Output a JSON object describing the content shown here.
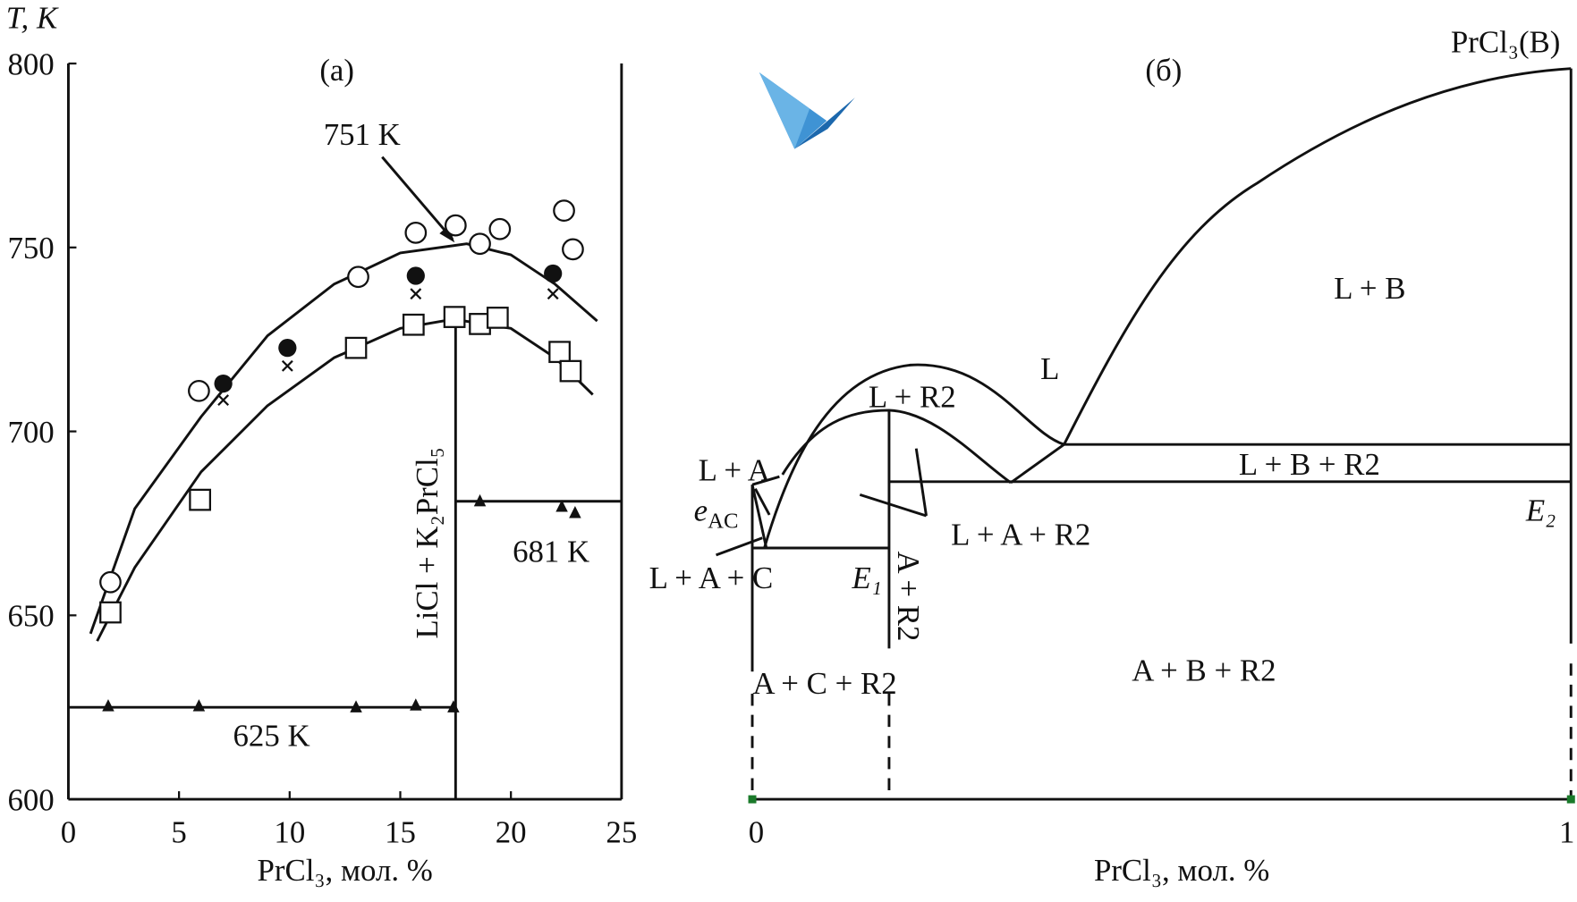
{
  "chart_data": [
    {
      "type": "scatter",
      "title": "(a)",
      "xlabel": "PrCl₃, мол. %",
      "ylabel": "T, K",
      "xlim": [
        0,
        25
      ],
      "ylim": [
        600,
        800
      ],
      "xticks": [
        0,
        5,
        10,
        15,
        20,
        25
      ],
      "yticks": [
        600,
        650,
        700,
        750,
        800
      ],
      "color": "#111111",
      "series": [
        {
          "marker": "open-circle",
          "x": [
            1.9,
            5.9,
            13.1,
            15.7,
            17.5,
            18.6,
            19.5,
            22.4,
            22.8
          ],
          "y": [
            659,
            711,
            742,
            754,
            756,
            751,
            755,
            760,
            749.5
          ]
        },
        {
          "marker": "filled-circle",
          "x": [
            7.0,
            9.9,
            15.7,
            21.9
          ],
          "y": [
            713,
            722.7,
            742.3,
            742.9
          ]
        },
        {
          "marker": "cross",
          "x": [
            7.0,
            9.9,
            15.7,
            21.9
          ],
          "y": [
            708.5,
            717.8,
            737.4,
            737.4
          ]
        },
        {
          "marker": "open-square",
          "x": [
            1.9,
            5.95,
            13.0,
            15.6,
            17.45,
            18.6,
            19.4,
            22.2,
            22.7
          ],
          "y": [
            650.8,
            681.4,
            722.7,
            729,
            731.1,
            729.2,
            730.9,
            721.6,
            716.4
          ]
        },
        {
          "marker": "triangle",
          "x": [
            1.8,
            5.9,
            13.0,
            15.7,
            17.4,
            18.6,
            22.3,
            22.9
          ],
          "y": [
            625.3,
            625.3,
            625,
            625.5,
            625,
            681,
            679.5,
            677.8
          ]
        }
      ],
      "lines": [
        {
          "x": [
            1.0,
            3,
            6,
            9,
            12,
            15,
            18,
            20,
            22,
            23.9
          ],
          "y": [
            645,
            679,
            704,
            726,
            740,
            748.5,
            751,
            748,
            740,
            730
          ]
        },
        {
          "x": [
            1.3,
            3,
            6,
            9,
            12,
            15,
            17.4,
            20,
            22,
            23.7
          ],
          "y": [
            643,
            663,
            689,
            707,
            720,
            728,
            730.5,
            728,
            720,
            710
          ]
        },
        {
          "x": [
            0,
            17.5
          ],
          "y": [
            625,
            625
          ]
        },
        {
          "x": [
            17.5,
            17.5
          ],
          "y": [
            600,
            731
          ]
        },
        {
          "x": [
            17.5,
            25
          ],
          "y": [
            681,
            681
          ]
        }
      ],
      "annotations": [
        "751 K",
        "625 K",
        "681 K",
        "LiCl + K₂PrCl₅"
      ]
    },
    {
      "type": "phase",
      "title": "(б)",
      "xlabel": "PrCl₃, мол. %",
      "xlim": [
        0,
        1
      ],
      "xticks": [
        0,
        1
      ],
      "tick_color": "#1a7a2a",
      "labels": [
        "PrCl₃(B)",
        "L + B",
        "L",
        "L + R2",
        "L + A",
        "L + B + R2",
        "E₂",
        "L + A + R2",
        "L + A + C",
        "E₁",
        "A + B + R2",
        "A + C + R2",
        "A + R2"
      ],
      "eutectic": {
        "symbol": "e",
        "sub": "AC"
      }
    }
  ]
}
